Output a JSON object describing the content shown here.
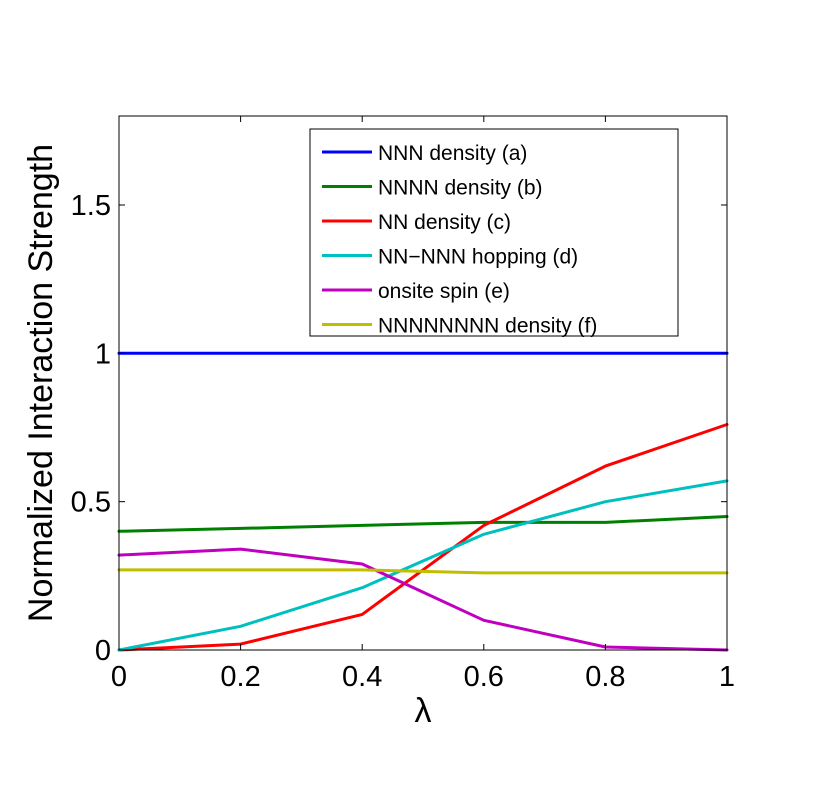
{
  "chart_data": {
    "type": "line",
    "title": "",
    "xlabel": "λ",
    "ylabel": "Normalized Interaction Strength",
    "xlim": [
      0,
      1
    ],
    "ylim": [
      0,
      1.8
    ],
    "xticks": [
      0,
      0.2,
      0.4,
      0.6,
      0.8,
      1
    ],
    "xtick_labels": [
      "0",
      "0.2",
      "0.4",
      "0.6",
      "0.8",
      "1"
    ],
    "yticks": [
      0,
      0.5,
      1,
      1.5
    ],
    "ytick_labels": [
      "0",
      "0.5",
      "1",
      "1.5"
    ],
    "grid": false,
    "legend_position": "top-right",
    "x": [
      0,
      0.2,
      0.4,
      0.6,
      0.8,
      1
    ],
    "series": [
      {
        "name": "NNN density (a)",
        "color": "#0000ff",
        "values": [
          1.0,
          1.0,
          1.0,
          1.0,
          1.0,
          1.0
        ]
      },
      {
        "name": "NNNN density (b)",
        "color": "#008000",
        "values": [
          0.4,
          0.41,
          0.42,
          0.43,
          0.43,
          0.45
        ]
      },
      {
        "name": "NN density (c)",
        "color": "#ff0000",
        "values": [
          0.0,
          0.02,
          0.12,
          0.42,
          0.62,
          0.76
        ]
      },
      {
        "name": "NN−NNN hopping (d)",
        "color": "#00bfbf",
        "values": [
          0.0,
          0.08,
          0.21,
          0.39,
          0.5,
          0.57
        ]
      },
      {
        "name": "onsite spin (e)",
        "color": "#bf00bf",
        "values": [
          0.32,
          0.34,
          0.29,
          0.1,
          0.01,
          0.0
        ]
      },
      {
        "name": "NNNNNNNN density (f)",
        "color": "#bfbf00",
        "values": [
          0.27,
          0.27,
          0.27,
          0.26,
          0.26,
          0.26
        ]
      }
    ]
  }
}
